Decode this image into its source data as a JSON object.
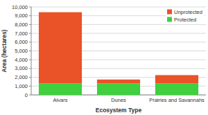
{
  "chart_data": {
    "type": "bar",
    "stacked": true,
    "grid": true,
    "legend": "top-right",
    "x_label": "Ecosystem Type",
    "y_label": "Area (hectares)",
    "categories": [
      "Alvars",
      "Dunes",
      "Prairies and Savannahs"
    ],
    "series": [
      {
        "name": "Protected",
        "color": "#3fcf3f",
        "values": [
          1300,
          1300,
          1300
        ]
      },
      {
        "name": "Unprotected",
        "color": "#ea5228",
        "values": [
          8100,
          450,
          950
        ]
      }
    ],
    "ylim": [
      0,
      10000
    ],
    "yticks": [
      0,
      {
        "value": 1000,
        "label": "1,000"
      },
      {
        "value": 2000,
        "label": "2,000"
      },
      {
        "value": 3000,
        "label": "3,000"
      },
      {
        "value": 4000,
        "label": "4,000"
      },
      {
        "value": 5000,
        "label": "5,000"
      },
      {
        "value": 6000,
        "label": "6,000"
      },
      {
        "value": 7000,
        "label": "7,000"
      },
      {
        "value": 8000,
        "label": "8,000"
      },
      {
        "value": 9000,
        "label": "9,000"
      },
      {
        "value": 10000,
        "label": "10,000"
      }
    ]
  }
}
